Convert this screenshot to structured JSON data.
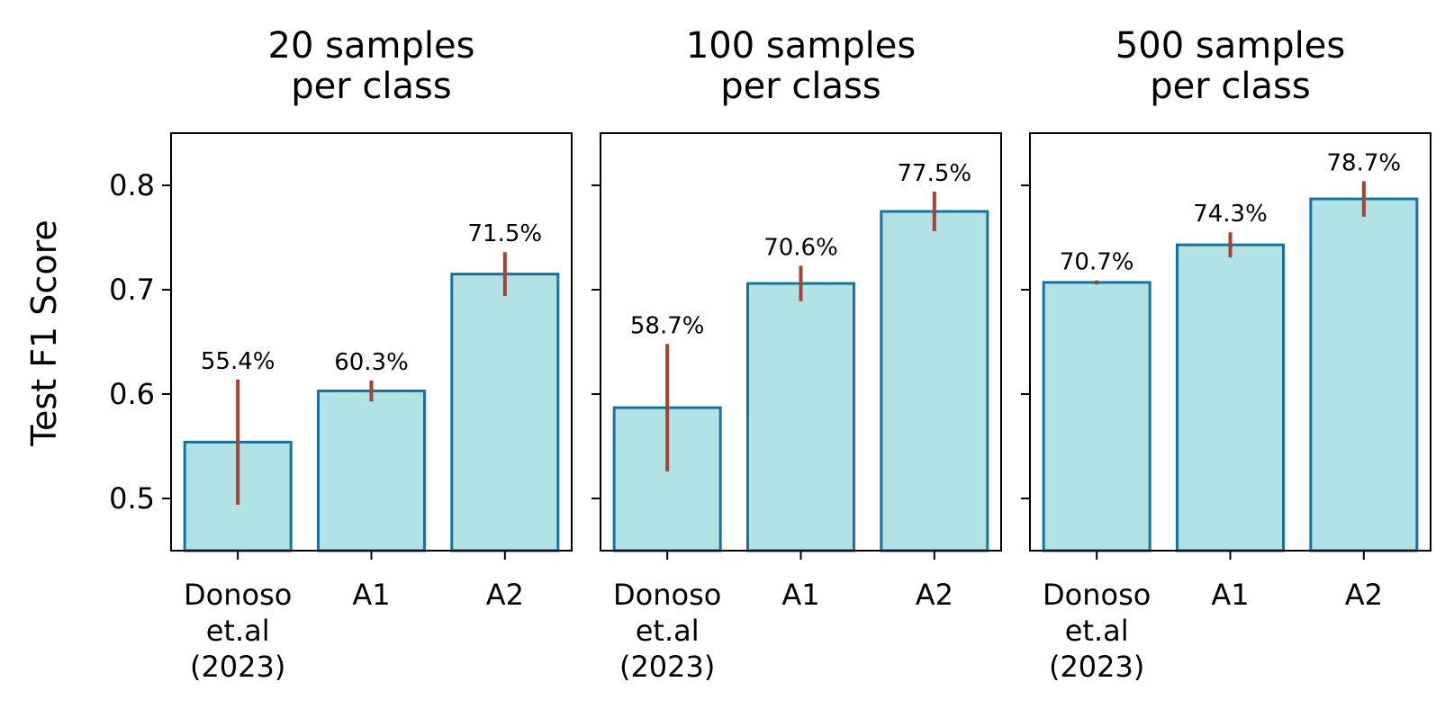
{
  "ylabel": "Test F1 Score",
  "colors": {
    "bar_fill": "#b0e2e6",
    "bar_edge": "#1573a0",
    "error_bar": "#a9412f",
    "axis": "#000000"
  },
  "chart_data": [
    {
      "type": "bar",
      "title": [
        "20 samples",
        "per class"
      ],
      "categories": [
        [
          "Donoso",
          "et.al",
          "(2023)"
        ],
        [
          "A1"
        ],
        [
          "A2"
        ]
      ],
      "values": [
        0.554,
        0.603,
        0.715
      ],
      "error_low": [
        0.494,
        0.593,
        0.694
      ],
      "error_high": [
        0.614,
        0.613,
        0.736
      ],
      "data_labels": [
        "55.4%",
        "60.3%",
        "71.5%"
      ],
      "ylim": [
        0.45,
        0.85
      ],
      "yticks": [
        0.5,
        0.6,
        0.7,
        0.8
      ],
      "ytick_labels": [
        "0.5",
        "0.6",
        "0.7",
        "0.8"
      ]
    },
    {
      "type": "bar",
      "title": [
        "100 samples",
        "per class"
      ],
      "categories": [
        [
          "Donoso",
          "et.al",
          "(2023)"
        ],
        [
          "A1"
        ],
        [
          "A2"
        ]
      ],
      "values": [
        0.587,
        0.706,
        0.775
      ],
      "error_low": [
        0.526,
        0.689,
        0.756
      ],
      "error_high": [
        0.648,
        0.723,
        0.794
      ],
      "data_labels": [
        "58.7%",
        "70.6%",
        "77.5%"
      ],
      "ylim": [
        0.45,
        0.85
      ],
      "yticks": [
        0.5,
        0.6,
        0.7,
        0.8
      ],
      "ytick_labels": []
    },
    {
      "type": "bar",
      "title": [
        "500 samples",
        "per class"
      ],
      "categories": [
        [
          "Donoso",
          "et.al",
          "(2023)"
        ],
        [
          "A1"
        ],
        [
          "A2"
        ]
      ],
      "values": [
        0.707,
        0.743,
        0.787
      ],
      "error_low": [
        0.705,
        0.731,
        0.77
      ],
      "error_high": [
        0.709,
        0.755,
        0.804
      ],
      "data_labels": [
        "70.7%",
        "74.3%",
        "78.7%"
      ],
      "ylim": [
        0.45,
        0.85
      ],
      "yticks": [
        0.5,
        0.6,
        0.7,
        0.8
      ],
      "ytick_labels": []
    }
  ]
}
